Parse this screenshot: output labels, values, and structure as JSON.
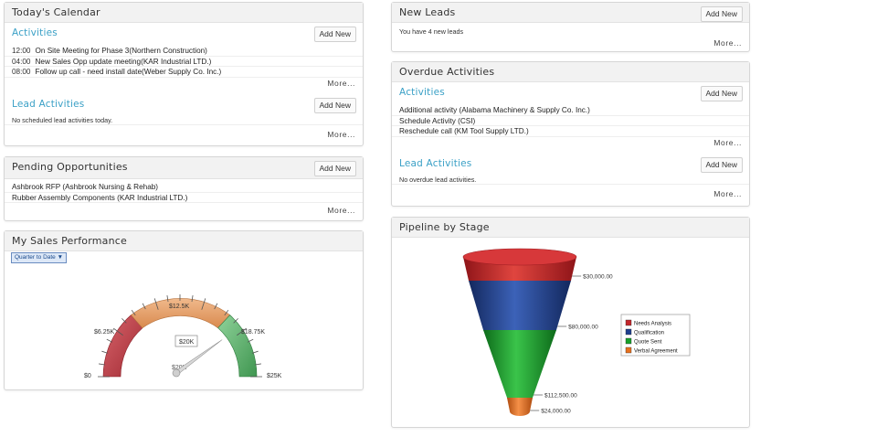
{
  "calendar": {
    "title": "Today's Calendar",
    "activities_title": "Activities",
    "add_new": "Add New",
    "activities": [
      {
        "time": "12:00",
        "text": "On Site Meeting for Phase 3(Northern Construction)"
      },
      {
        "time": "04:00",
        "text": "New Sales Opp update meeting(KAR Industrial LTD.)"
      },
      {
        "time": "08:00",
        "text": "Follow up call - need install date(Weber Supply Co. Inc.)"
      }
    ],
    "more": "More...",
    "lead_title": "Lead Activities",
    "lead_add_new": "Add New",
    "lead_note": "No scheduled lead activities today.",
    "lead_more": "More..."
  },
  "pending": {
    "title": "Pending Opportunities",
    "add_new": "Add New",
    "items": [
      "Ashbrook RFP (Ashbrook Nursing & Rehab)",
      "Rubber Assembly Components (KAR Industrial LTD.)"
    ],
    "more": "More..."
  },
  "performance": {
    "title": "My Sales Performance",
    "period": "Quarter to Date ▼",
    "gauge": {
      "min_label": "$0",
      "q1_label": "$6.25K",
      "mid_label": "$12.5K",
      "q3_label": "$18.75K",
      "max_label": "$25K",
      "value_label": "$20K",
      "value": 20,
      "max": 25
    },
    "colors": {
      "low": "#b4363e",
      "mid": "#e29a62",
      "high": "#49a55a"
    }
  },
  "new_leads": {
    "title": "New Leads",
    "add_new": "Add New",
    "note": "You have 4 new leads",
    "more": "More..."
  },
  "overdue": {
    "title": "Overdue Activities",
    "activities_title": "Activities",
    "add_new": "Add New",
    "items": [
      "Additional activity (Alabama Machinery & Supply Co. Inc.)",
      "Schedule Activity (CSI)",
      "Reschedule call (KM Tool Supply LTD.)"
    ],
    "more": "More...",
    "lead_title": "Lead Activities",
    "lead_add_new": "Add New",
    "lead_note": "No overdue lead activities.",
    "lead_more": "More..."
  },
  "pipeline": {
    "title": "Pipeline by Stage",
    "stages": [
      {
        "name": "Needs Analysis",
        "value": 30000,
        "label": "$30,000.00",
        "color": "#c4262b"
      },
      {
        "name": "Qualification",
        "value": 80000,
        "label": "$80,000.00",
        "color": "#1f3f8f"
      },
      {
        "name": "Quote Sent",
        "value": 112500,
        "label": "$112,500.00",
        "color": "#17a12a"
      },
      {
        "name": "Verbal Agreement",
        "value": 24000,
        "label": "$24,000.00",
        "color": "#e8701e"
      }
    ]
  }
}
